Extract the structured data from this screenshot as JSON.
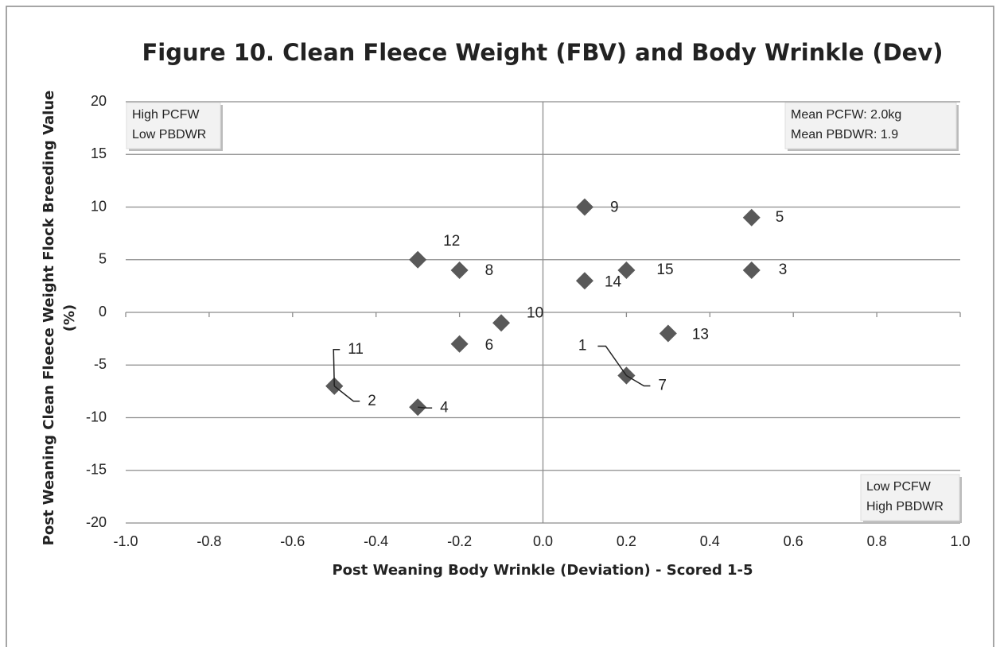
{
  "chart_data": {
    "type": "scatter",
    "title": "Figure 10. Clean Fleece Weight (FBV) and Body Wrinkle (Dev)",
    "xlabel": "Post Weaning Body Wrinkle (Deviation) - Scored 1-5",
    "ylabel": [
      "Post Weaning Clean Fleece Weight  Flock Breeding Value",
      "(%)"
    ],
    "x": [
      0.2,
      -0.5,
      0.5,
      -0.3,
      0.5,
      -0.2,
      0.2,
      -0.2,
      0.1,
      -0.1,
      -0.5,
      -0.3,
      0.3,
      0.1,
      0.2
    ],
    "values": [
      -6,
      -7,
      4,
      -9,
      9,
      -3,
      -6,
      4,
      10,
      -1,
      -7,
      5,
      -2,
      3,
      4
    ],
    "point_labels": [
      "1",
      "2",
      "3",
      "4",
      "5",
      "6",
      "7",
      "8",
      "9",
      "10",
      "11",
      "12",
      "13",
      "14",
      "15"
    ],
    "color": "#595959",
    "xlim": [
      -1,
      1
    ],
    "xticks": [
      {
        "value": -1,
        "label": "-1.0"
      },
      -0.8,
      -0.6,
      -0.4,
      -0.2,
      {
        "value": 0,
        "label": "0.0"
      },
      0.2,
      0.4,
      0.6,
      0.8,
      {
        "value": 1,
        "label": "1.0"
      }
    ],
    "ylim": [
      -20,
      20
    ],
    "yticks": [
      -20,
      -15,
      -10,
      -5,
      0,
      5,
      10,
      15,
      20
    ],
    "grid": true,
    "annotations": [
      [
        "High PCFW",
        "Low PBDWR"
      ],
      [
        "Mean PCFW: 2.0kg",
        "Mean PBDWR: 1.9"
      ],
      [
        "Low PCFW",
        "High PBDWR"
      ]
    ]
  }
}
